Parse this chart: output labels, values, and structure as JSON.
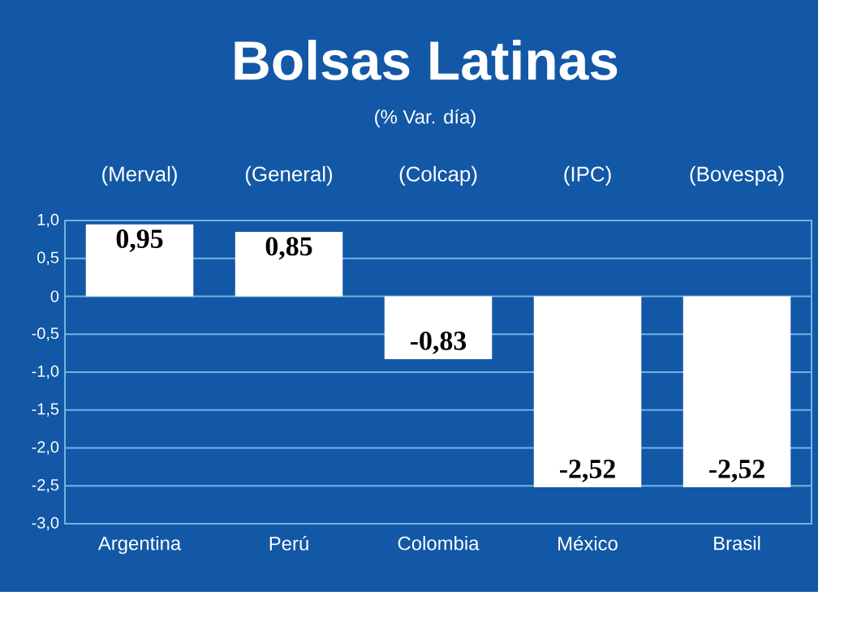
{
  "chart_data": {
    "type": "bar",
    "title": "Bolsas Latinas",
    "subtitle": "(% Var. día)",
    "categories": [
      "Argentina",
      "Perú",
      "Colombia",
      "México",
      "Brasil"
    ],
    "values": [
      0.95,
      0.85,
      -0.83,
      -2.52,
      -2.52
    ],
    "value_labels": [
      "0,95",
      "0,85",
      "-0,83",
      "-2,52",
      "-2,52"
    ],
    "color": "#ffffff",
    "ylim": [
      -3,
      1
    ],
    "yticks": [
      {
        "value": 1,
        "label": "1,0"
      },
      {
        "value": 0.5,
        "label": "0,5"
      },
      0,
      {
        "value": -0.5,
        "label": "-0,5"
      },
      {
        "value": -1,
        "label": "-1,0"
      },
      {
        "value": -1.5,
        "label": "-1,5"
      },
      {
        "value": -2,
        "label": "-2,0"
      },
      {
        "value": -2.5,
        "label": "-2,5"
      },
      {
        "value": -3,
        "label": "-3,0"
      }
    ],
    "grid": "y",
    "annotations": [
      "(Merval)",
      "(General)",
      "(Colcap)",
      "(IPC)",
      "(Bovespa)"
    ]
  }
}
